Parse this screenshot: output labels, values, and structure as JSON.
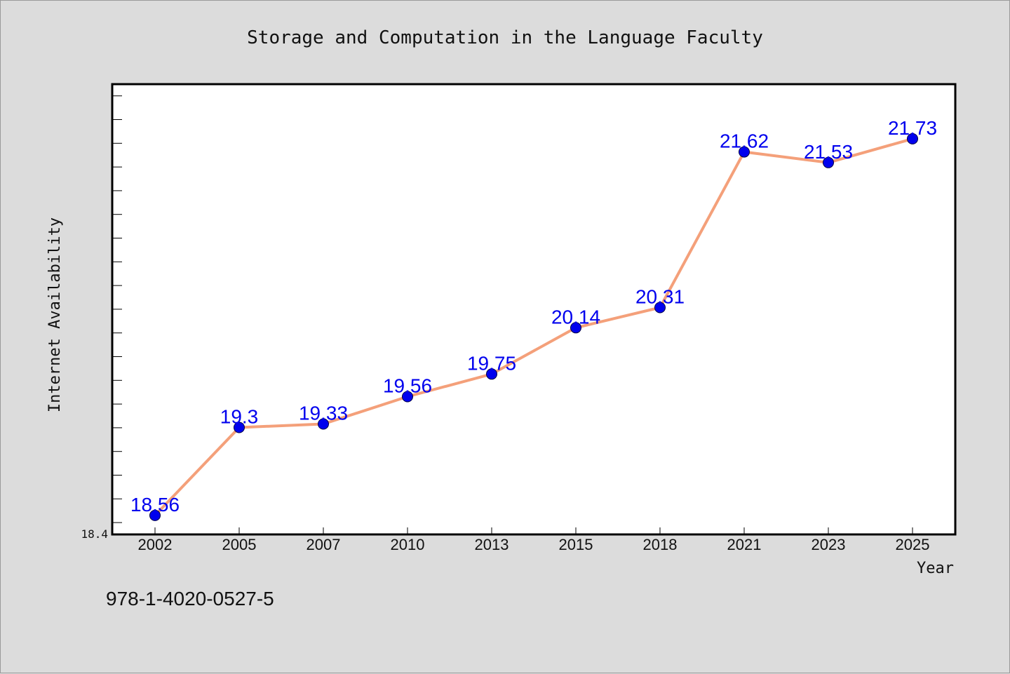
{
  "footer_text": "978-1-4020-0527-5",
  "chart_data": {
    "type": "line",
    "title": "Storage and Computation in the Language Faculty",
    "xlabel": "Year",
    "ylabel": "Internet Availability",
    "categories": [
      "2002",
      "2005",
      "2007",
      "2010",
      "2013",
      "2015",
      "2018",
      "2021",
      "2023",
      "2025"
    ],
    "values": [
      18.56,
      19.3,
      19.33,
      19.56,
      19.75,
      20.14,
      20.31,
      21.62,
      21.53,
      21.73
    ],
    "data_labels": [
      "18.56",
      "19.3",
      "19.33",
      "19.56",
      "19.75",
      "20.14",
      "20.31",
      "21.62",
      "21.53",
      "21.73"
    ],
    "ylim": [
      18.4,
      22.19
    ],
    "y_tick_label": "18.4",
    "grid": false,
    "legend": "none",
    "colors": {
      "line": "#f4a07a",
      "marker": "#0000ee",
      "label": "#0000ee",
      "background": "#dcdcdc",
      "plot_background": "#ffffff"
    }
  }
}
